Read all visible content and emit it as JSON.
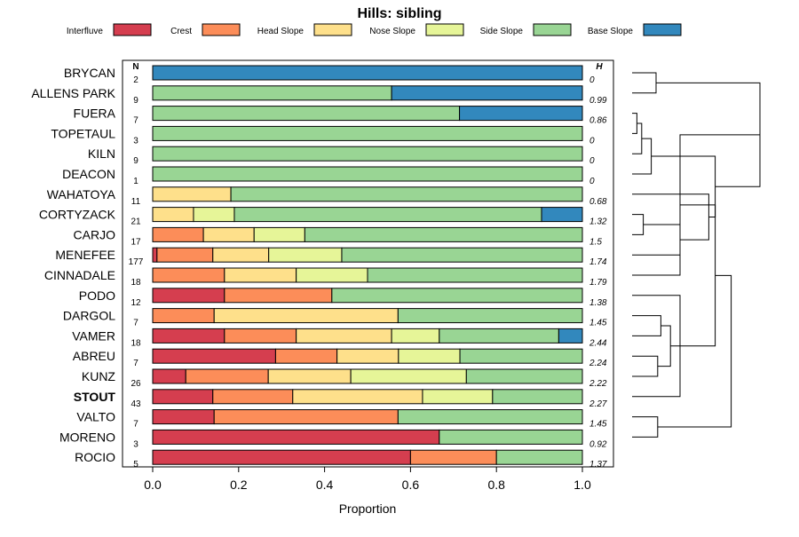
{
  "chart_data": {
    "type": "bar",
    "orientation": "horizontal",
    "stacked": true,
    "title": "Hills: sibling",
    "xlabel": "Proportion",
    "ylabel": "",
    "xlim": [
      0,
      1
    ],
    "x_ticks": [
      "0.0",
      "0.2",
      "0.4",
      "0.6",
      "0.8",
      "1.0"
    ],
    "n_header": "N",
    "h_header": "H",
    "legend_position": "top",
    "bold_category": "STOUT",
    "categories": [
      "BRYCAN",
      "ALLENS PARK",
      "FUERA",
      "TOPETAUL",
      "KILN",
      "DEACON",
      "WAHATOYA",
      "CORTYZACK",
      "CARJO",
      "MENEFEE",
      "CINNADALE",
      "PODO",
      "DARGOL",
      "VAMER",
      "ABREU",
      "KUNZ",
      "STOUT",
      "VALTO",
      "MORENO",
      "ROCIO"
    ],
    "n": [
      "2",
      "9",
      "7",
      "3",
      "9",
      "1",
      "11",
      "21",
      "17",
      "177",
      "18",
      "12",
      "7",
      "18",
      "7",
      "26",
      "43",
      "7",
      "3",
      "5"
    ],
    "h": [
      "0",
      "0.99",
      "0.86",
      "0",
      "0",
      "0",
      "0.68",
      "1.32",
      "1.5",
      "1.74",
      "1.79",
      "1.38",
      "1.45",
      "2.44",
      "2.24",
      "2.22",
      "2.27",
      "1.45",
      "0.92",
      "1.37"
    ],
    "series": [
      {
        "name": "Interfluve",
        "color": "#d53e4f",
        "values": [
          0,
          0,
          0,
          0,
          0,
          0,
          0,
          0,
          0,
          0.01,
          0,
          0.167,
          0,
          0.167,
          0.286,
          0.077,
          0.14,
          0.143,
          0.667,
          0.6
        ]
      },
      {
        "name": "Crest",
        "color": "#fc8d59",
        "values": [
          0,
          0,
          0,
          0,
          0,
          0,
          0,
          0,
          0.118,
          0.13,
          0.167,
          0.25,
          0.143,
          0.167,
          0.143,
          0.192,
          0.186,
          0.428,
          0,
          0.2
        ]
      },
      {
        "name": "Head Slope",
        "color": "#fee08b",
        "values": [
          0,
          0,
          0,
          0,
          0,
          0,
          0.182,
          0.095,
          0.118,
          0.13,
          0.167,
          0,
          0.428,
          0.222,
          0.143,
          0.192,
          0.302,
          0,
          0,
          0
        ]
      },
      {
        "name": "Nose Slope",
        "color": "#e6f598",
        "values": [
          0,
          0,
          0,
          0,
          0,
          0,
          0,
          0.095,
          0.118,
          0.17,
          0.166,
          0,
          0,
          0.111,
          0.143,
          0.269,
          0.163,
          0,
          0,
          0
        ]
      },
      {
        "name": "Side Slope",
        "color": "#99d594",
        "values": [
          0,
          0.556,
          0.714,
          1,
          1,
          1,
          0.818,
          0.715,
          0.646,
          0.56,
          0.5,
          0.583,
          0.429,
          0.278,
          0.285,
          0.27,
          0.209,
          0.429,
          0.333,
          0.2
        ]
      },
      {
        "name": "Base Slope",
        "color": "#3288bd",
        "values": [
          1,
          0.444,
          0.286,
          0,
          0,
          0,
          0,
          0.095,
          0,
          0,
          0,
          0,
          0,
          0.055,
          0,
          0,
          0,
          0,
          0,
          0
        ]
      }
    ],
    "dendrogram": {
      "label": "hierarchical clustering of categories (row order)",
      "merges": [
        [
          1,
          2,
          0.15
        ],
        [
          3,
          4,
          0.03
        ],
        [
          -2,
          5,
          0.06
        ],
        [
          -3,
          6,
          0.12
        ],
        [
          8,
          9,
          0.07
        ],
        [
          -5,
          10,
          0.3
        ],
        [
          -6,
          7,
          0.48
        ],
        [
          -7,
          -4,
          0.52
        ],
        [
          -1,
          -8,
          0.8
        ],
        [
          15,
          16,
          0.16
        ],
        [
          13,
          14,
          0.18
        ],
        [
          -11,
          -10,
          0.24
        ],
        [
          12,
          17,
          0.3
        ],
        [
          -12,
          -13,
          0.4
        ],
        [
          18,
          19,
          0.16
        ],
        [
          -9,
          11,
          0.3
        ],
        [
          -16,
          -14,
          0.52
        ],
        [
          -17,
          -15,
          0.62
        ],
        [
          -18,
          -19,
          0.66
        ],
        [
          0,
          -20,
          1.0
        ]
      ]
    }
  }
}
